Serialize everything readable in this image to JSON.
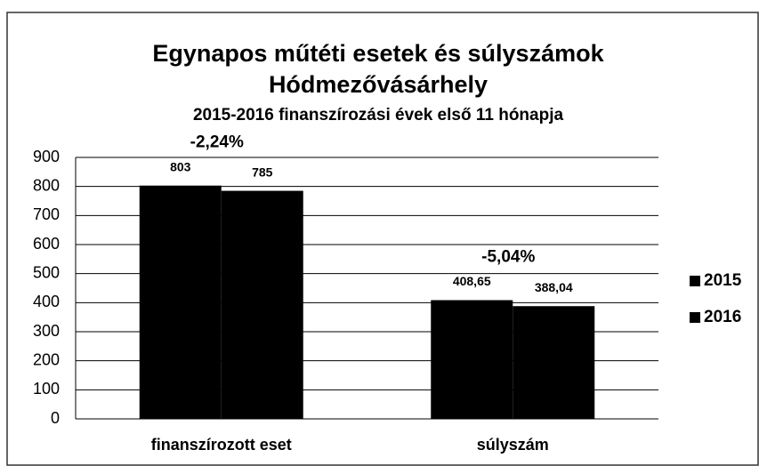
{
  "chart_data": {
    "type": "bar",
    "title": "Egynapos műtéti esetek és súlyszámok",
    "title2": "Hódmezővásárhely",
    "subtitle": "2015-2016 finanszírozási évek első 11 hónapja",
    "categories": [
      "finanszírozott eset",
      "súlyszám"
    ],
    "series": [
      {
        "name": "2015",
        "color": "#000000",
        "values": [
          803,
          408.65
        ],
        "value_labels": [
          "803",
          "408,65"
        ]
      },
      {
        "name": "2016",
        "color": "#000000",
        "values": [
          785,
          388.04
        ],
        "value_labels": [
          "785",
          "388,04"
        ]
      }
    ],
    "annotations": [
      "-2,24%",
      "-5,04%"
    ],
    "ylim": [
      0,
      900
    ],
    "yticks": [
      0,
      100,
      200,
      300,
      400,
      500,
      600,
      700,
      800,
      900
    ],
    "grid": true,
    "legend": "right"
  }
}
